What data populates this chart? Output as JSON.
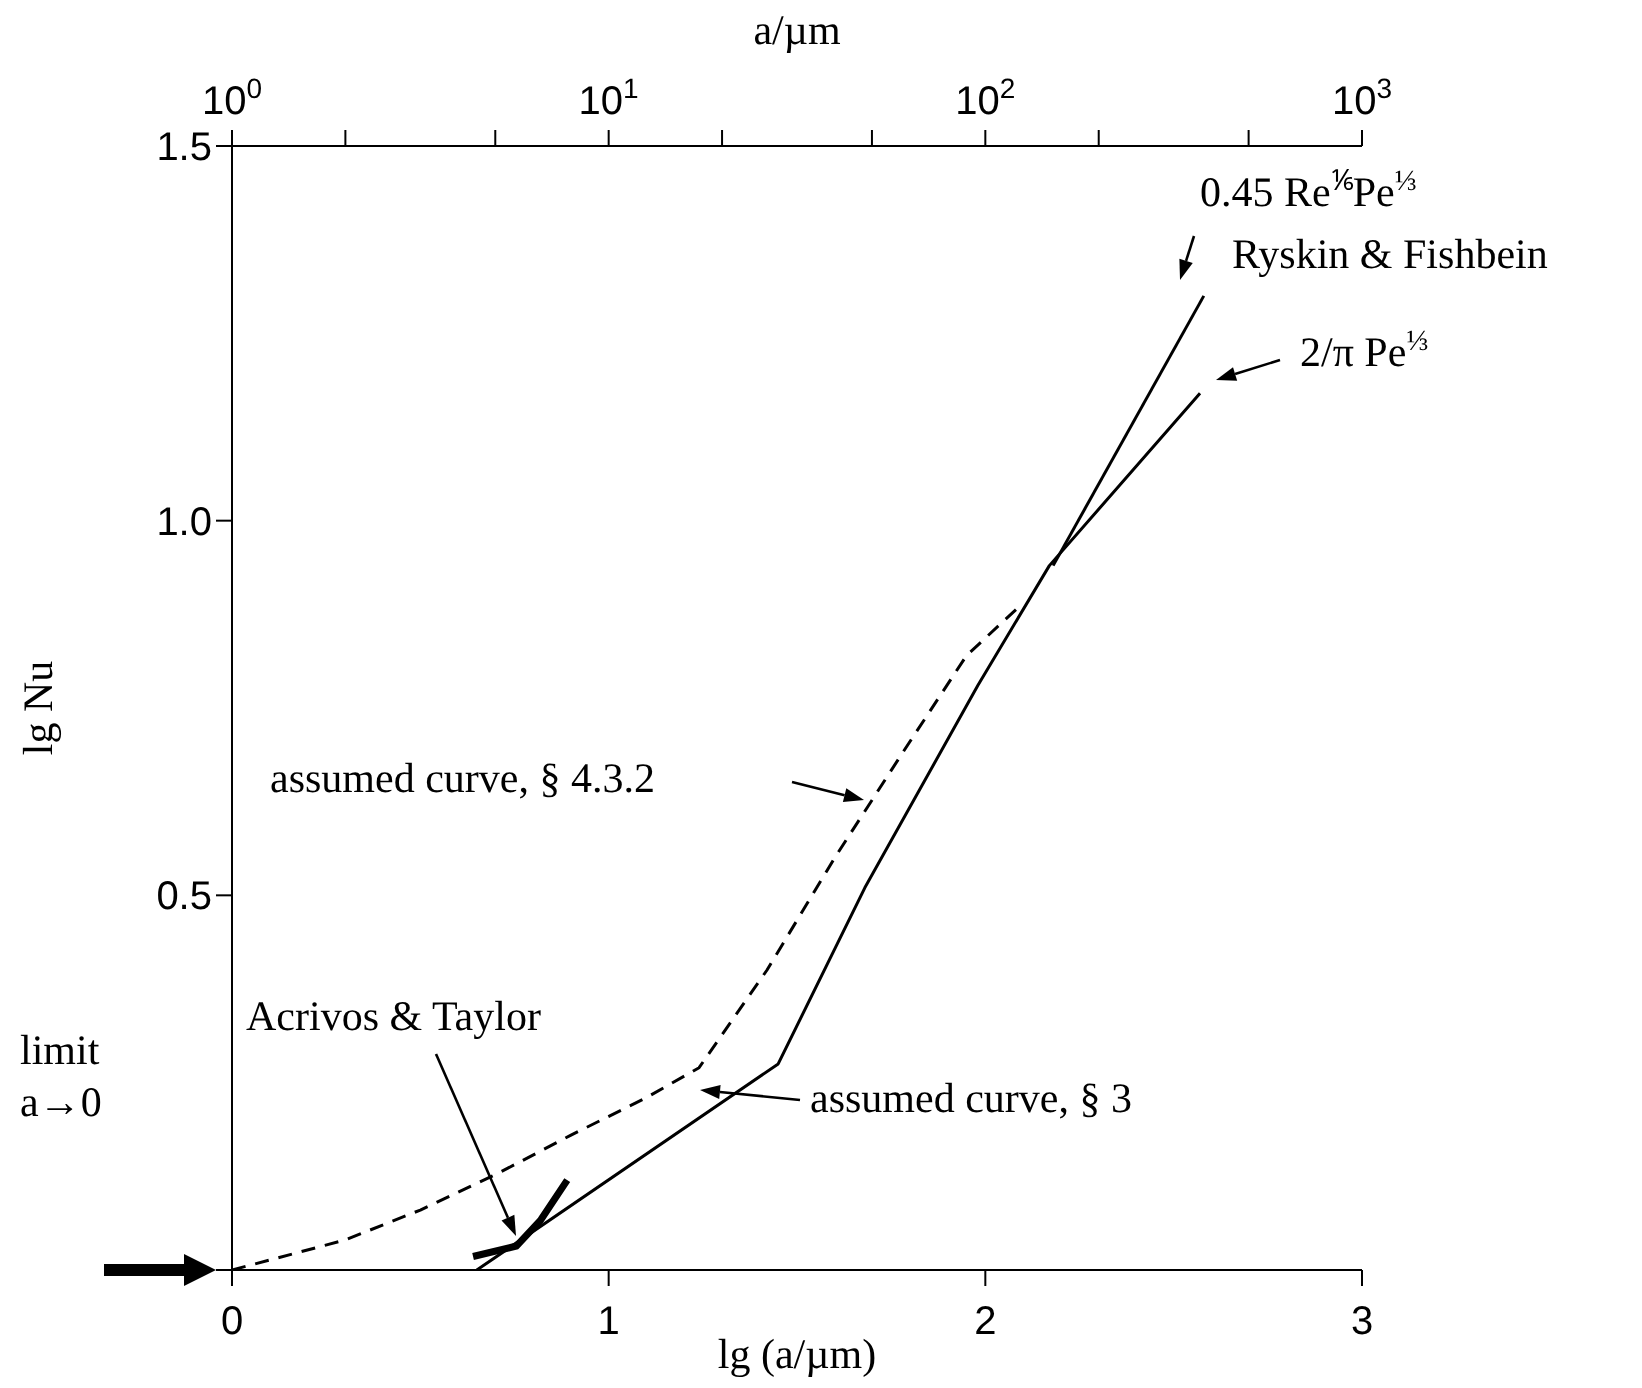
{
  "chart_data": {
    "type": "line",
    "xlabel": "lg (a/µm)",
    "ylabel": "lg Nu",
    "x2label": "a/µm",
    "xlim": [
      0,
      3
    ],
    "xticks": [
      0,
      1,
      2,
      3
    ],
    "ylim": [
      0,
      1.5
    ],
    "yticks": [
      {
        "value": 0,
        "label": null
      },
      0.5,
      {
        "value": 1,
        "label": "1.0"
      },
      1.5
    ],
    "x2lim": [
      1,
      1000
    ],
    "log": "x2",
    "x2ticks": [
      {
        "value": 1,
        "label": "10$^{0}$"
      },
      {
        "value": 2,
        "label": null
      },
      {
        "value": 5,
        "label": null
      },
      {
        "value": 10,
        "label": "10$^{1}$"
      },
      {
        "value": 20,
        "label": null
      },
      {
        "value": 50,
        "label": null
      },
      {
        "value": 100,
        "label": "10$^{2}$"
      },
      {
        "value": 200,
        "label": null
      },
      {
        "value": 500,
        "label": null
      },
      {
        "value": 1000,
        "label": "10$^{3}$"
      }
    ],
    "marker": "none",
    "series": [
      {
        "color": "#000000",
        "line_style": "solid",
        "x": [
          0.65,
          1.45,
          1.68,
          1.98,
          2.17,
          2.57
        ],
        "values": [
          0,
          0.275,
          0.51,
          0.78,
          0.94,
          1.17
        ]
      },
      {
        "color": "#000000",
        "line_style": "solid",
        "x": [
          2.18,
          2.58
        ],
        "values": [
          0.94,
          1.3
        ]
      },
      {
        "color": "#000000",
        "line_style": "dashed",
        "x": [
          0,
          0.3,
          0.5,
          0.71,
          0.9,
          1.1,
          1.24,
          1.42,
          1.6,
          1.78,
          1.95,
          2.1
        ],
        "values": [
          0,
          0.04,
          0.08,
          0.13,
          0.18,
          0.23,
          0.27,
          0.4,
          0.55,
          0.69,
          0.82,
          0.89
        ]
      },
      {
        "color": "#000000",
        "line_style": "solid",
        "x": [
          0.64,
          0.755,
          0.82,
          0.89
        ],
        "values": [
          0.018,
          0.032,
          0.067,
          0.12
        ]
      }
    ],
    "annotations": [
      "0.45 Re$^{⅙}$Pe$^{⅓}$",
      "Ryskin & Fishbein",
      "2/π Pe$^{⅓}$",
      "assumed curve, § 4.3.2",
      "Acrivos & Taylor",
      "assumed curve, § 3",
      "limit a→0"
    ]
  }
}
